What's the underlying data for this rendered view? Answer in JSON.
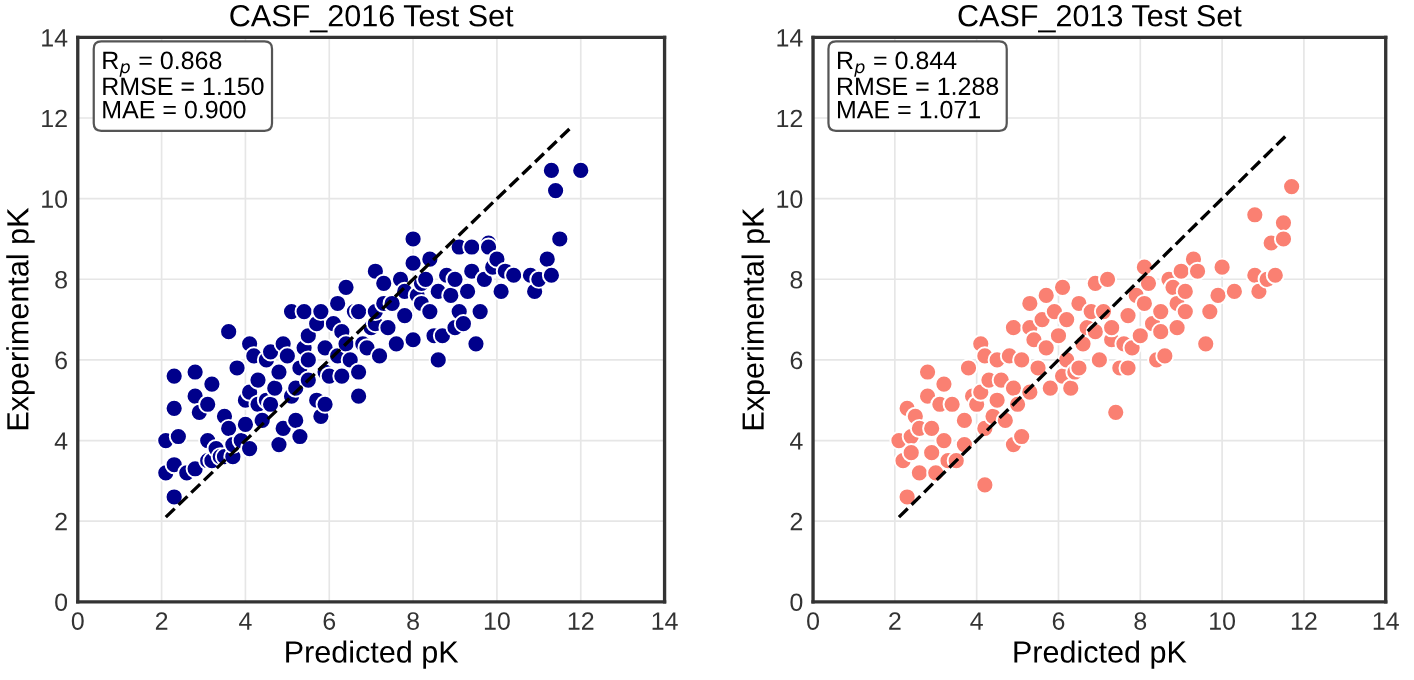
{
  "chart_data": [
    {
      "type": "scatter",
      "title": "CASF_2016 Test Set",
      "xlabel": "Predicted pK",
      "ylabel": "Experimental pK",
      "annotations": [
        "R$_{p}$ = 0.868\nRMSE = 1.150\nMAE = 0.900"
      ],
      "xlim": [
        0,
        14
      ],
      "ylim": [
        0,
        14
      ],
      "xticks": [
        0,
        2,
        4,
        6,
        8,
        10,
        12,
        14
      ],
      "yticks": [
        0,
        2,
        4,
        6,
        8,
        10,
        12,
        14
      ],
      "grid": true,
      "marker": "circle",
      "legend": false,
      "series": [
        {
          "color": "#00008b",
          "x": [
            2.1,
            2.1,
            2.3,
            2.3,
            2.3,
            2.3,
            2.4,
            2.6,
            2.8,
            2.8,
            2.8,
            2.9,
            3.1,
            3.1,
            3.2,
            3.1,
            3.2,
            3.3,
            3.4,
            3.5,
            3.5,
            3.6,
            3.6,
            3.7,
            3.7,
            3.8,
            3.9,
            4.0,
            4.0,
            4.1,
            4.1,
            4.1,
            4.2,
            4.3,
            4.3,
            4.4,
            4.5,
            4.5,
            4.6,
            4.6,
            4.7,
            4.8,
            4.8,
            4.9,
            4.9,
            5.0,
            5.1,
            5.1,
            5.2,
            5.2,
            5.3,
            5.3,
            5.4,
            5.4,
            5.5,
            5.5,
            5.5,
            5.7,
            5.7,
            5.8,
            5.8,
            5.9,
            5.9,
            5.9,
            6.0,
            6.1,
            6.2,
            6.2,
            6.3,
            6.3,
            6.4,
            6.4,
            6.5,
            6.6,
            6.7,
            6.7,
            6.7,
            6.8,
            6.9,
            7.0,
            7.1,
            7.1,
            7.1,
            7.2,
            7.3,
            7.3,
            7.4,
            7.5,
            7.6,
            7.7,
            7.8,
            7.8,
            8.0,
            8.0,
            8.0,
            8.1,
            8.2,
            8.2,
            8.3,
            8.4,
            8.4,
            8.5,
            8.6,
            8.6,
            8.7,
            8.8,
            8.9,
            9.0,
            9.0,
            9.1,
            9.1,
            9.2,
            9.3,
            9.4,
            9.4,
            9.5,
            9.6,
            9.7,
            9.8,
            9.8,
            9.9,
            10.0,
            10.1,
            10.2,
            10.4,
            10.8,
            10.9,
            11.0,
            11.2,
            11.3,
            11.3,
            11.4,
            11.5,
            12.0
          ],
          "values": [
            4.0,
            3.2,
            3.4,
            2.6,
            5.6,
            4.8,
            4.1,
            3.2,
            5.1,
            5.7,
            3.3,
            4.7,
            4.0,
            4.9,
            5.4,
            3.5,
            3.5,
            3.8,
            3.6,
            3.6,
            4.6,
            4.3,
            6.7,
            3.6,
            3.9,
            5.8,
            4.0,
            4.4,
            5.0,
            6.4,
            3.8,
            5.2,
            6.1,
            5.5,
            4.9,
            4.5,
            5.0,
            6.0,
            6.2,
            4.9,
            5.3,
            5.7,
            3.9,
            4.3,
            6.4,
            6.1,
            5.1,
            7.2,
            5.3,
            4.5,
            4.1,
            5.8,
            7.2,
            6.3,
            5.5,
            6.6,
            6.0,
            6.9,
            5.0,
            4.6,
            7.2,
            5.7,
            6.3,
            4.9,
            5.6,
            6.9,
            6.1,
            7.4,
            6.7,
            5.6,
            7.8,
            6.4,
            6.0,
            7.2,
            7.2,
            5.1,
            5.7,
            6.4,
            6.3,
            6.8,
            6.9,
            7.2,
            8.2,
            6.1,
            7.4,
            7.9,
            6.8,
            7.4,
            6.4,
            8.0,
            7.1,
            7.7,
            9.0,
            8.4,
            6.5,
            7.6,
            7.9,
            7.4,
            8.0,
            7.2,
            8.5,
            6.6,
            6.0,
            7.7,
            6.6,
            8.1,
            7.6,
            6.8,
            8.0,
            8.8,
            7.2,
            6.9,
            7.7,
            8.2,
            8.8,
            6.4,
            7.2,
            8.0,
            8.9,
            8.8,
            8.3,
            8.5,
            7.7,
            8.2,
            8.1,
            8.1,
            7.7,
            8.0,
            8.5,
            8.1,
            10.7,
            10.2,
            9.0,
            10.7
          ]
        },
        {
          "type": "line",
          "color": "#000000",
          "line_style": "dashed",
          "marker": "none",
          "x": [
            2.1,
            11.8
          ],
          "values": [
            2.1,
            11.8
          ]
        }
      ]
    },
    {
      "type": "scatter",
      "title": "CASF_2013 Test Set",
      "xlabel": "Predicted pK",
      "ylabel": "Experimental pK",
      "annotations": [
        "R$_{p}$ = 0.844\nRMSE = 1.288\nMAE = 1.071"
      ],
      "xlim": [
        0,
        14
      ],
      "ylim": [
        0,
        14
      ],
      "xticks": [
        0,
        2,
        4,
        6,
        8,
        10,
        12,
        14
      ],
      "yticks": [
        0,
        2,
        4,
        6,
        8,
        10,
        12,
        14
      ],
      "grid": true,
      "marker": "circle",
      "legend": false,
      "series": [
        {
          "color": "#fa8072",
          "x": [
            2.1,
            2.2,
            2.3,
            2.3,
            2.4,
            2.4,
            2.5,
            2.6,
            2.6,
            2.8,
            2.8,
            2.9,
            2.9,
            3.0,
            3.1,
            3.2,
            3.2,
            3.3,
            3.4,
            3.5,
            3.7,
            3.7,
            3.8,
            3.9,
            4.0,
            4.1,
            4.1,
            4.2,
            4.2,
            4.2,
            4.3,
            4.4,
            4.5,
            4.5,
            4.6,
            4.7,
            4.8,
            4.9,
            4.9,
            4.9,
            5.0,
            5.1,
            5.1,
            5.3,
            5.3,
            5.3,
            5.4,
            5.5,
            5.6,
            5.7,
            5.7,
            5.8,
            5.9,
            6.0,
            6.1,
            6.1,
            6.2,
            6.2,
            6.3,
            6.4,
            6.5,
            6.5,
            6.6,
            6.7,
            6.8,
            6.9,
            6.9,
            7.0,
            7.1,
            7.2,
            7.3,
            7.3,
            7.4,
            7.5,
            7.6,
            7.7,
            7.7,
            7.8,
            7.9,
            8.0,
            8.1,
            8.1,
            8.2,
            8.3,
            8.4,
            8.5,
            8.5,
            8.6,
            8.7,
            8.8,
            8.9,
            8.9,
            9.0,
            9.1,
            9.1,
            9.3,
            9.4,
            9.6,
            9.7,
            9.9,
            10.0,
            10.3,
            10.8,
            10.8,
            10.9,
            11.1,
            11.2,
            11.3,
            11.5,
            11.5,
            11.7
          ],
          "values": [
            4.0,
            3.5,
            4.8,
            2.6,
            4.1,
            3.7,
            4.6,
            3.2,
            4.3,
            5.1,
            5.7,
            3.7,
            4.3,
            3.2,
            4.9,
            5.4,
            4.0,
            3.5,
            4.9,
            3.5,
            4.5,
            3.9,
            5.8,
            5.1,
            4.9,
            6.4,
            5.2,
            6.1,
            2.9,
            4.3,
            5.5,
            4.6,
            6.0,
            5.0,
            5.5,
            4.5,
            6.1,
            3.9,
            5.3,
            6.8,
            4.9,
            6.0,
            4.1,
            7.4,
            6.8,
            5.2,
            6.5,
            5.8,
            7.0,
            6.3,
            7.6,
            5.3,
            7.2,
            6.6,
            7.8,
            5.6,
            7.0,
            6.0,
            5.3,
            5.7,
            7.4,
            5.8,
            6.4,
            6.8,
            7.2,
            7.9,
            6.7,
            6.0,
            7.2,
            8.0,
            6.5,
            6.8,
            4.7,
            5.8,
            6.4,
            7.1,
            5.8,
            6.3,
            7.6,
            6.6,
            8.3,
            7.4,
            7.9,
            6.9,
            6.0,
            7.2,
            6.7,
            6.1,
            8.0,
            7.8,
            7.4,
            6.8,
            8.2,
            7.2,
            7.7,
            8.5,
            8.2,
            6.4,
            7.2,
            7.6,
            8.3,
            7.7,
            9.6,
            8.1,
            7.7,
            8.0,
            8.9,
            8.1,
            9.4,
            9.0,
            10.3
          ]
        },
        {
          "type": "line",
          "color": "#000000",
          "line_style": "dashed",
          "marker": "none",
          "x": [
            2.1,
            11.6
          ],
          "values": [
            2.1,
            11.6
          ]
        }
      ]
    }
  ]
}
